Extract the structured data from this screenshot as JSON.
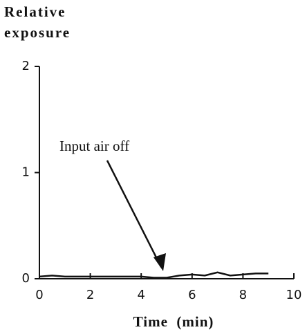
{
  "chart_data": {
    "type": "line",
    "ylabel": "Relative exposure",
    "xlabel": "Time  (min)",
    "annotation": "Input air off",
    "x": [
      0,
      0.5,
      1,
      1.5,
      2,
      2.5,
      3,
      3.5,
      4,
      4.5,
      5,
      5.5,
      6,
      6.5,
      7,
      7.5,
      8,
      8.5,
      9
    ],
    "values": [
      0.02,
      0.03,
      0.02,
      0.02,
      0.02,
      0.02,
      0.02,
      0.02,
      0.02,
      0.01,
      0.01,
      0.03,
      0.04,
      0.03,
      0.06,
      0.03,
      0.04,
      0.05,
      0.05
    ],
    "color": "#111111",
    "xlim": [
      0,
      10
    ],
    "xticks": [
      0,
      2,
      4,
      6,
      8,
      10
    ],
    "ylim": [
      0,
      2
    ],
    "yticks": [
      0,
      1,
      2
    ]
  }
}
